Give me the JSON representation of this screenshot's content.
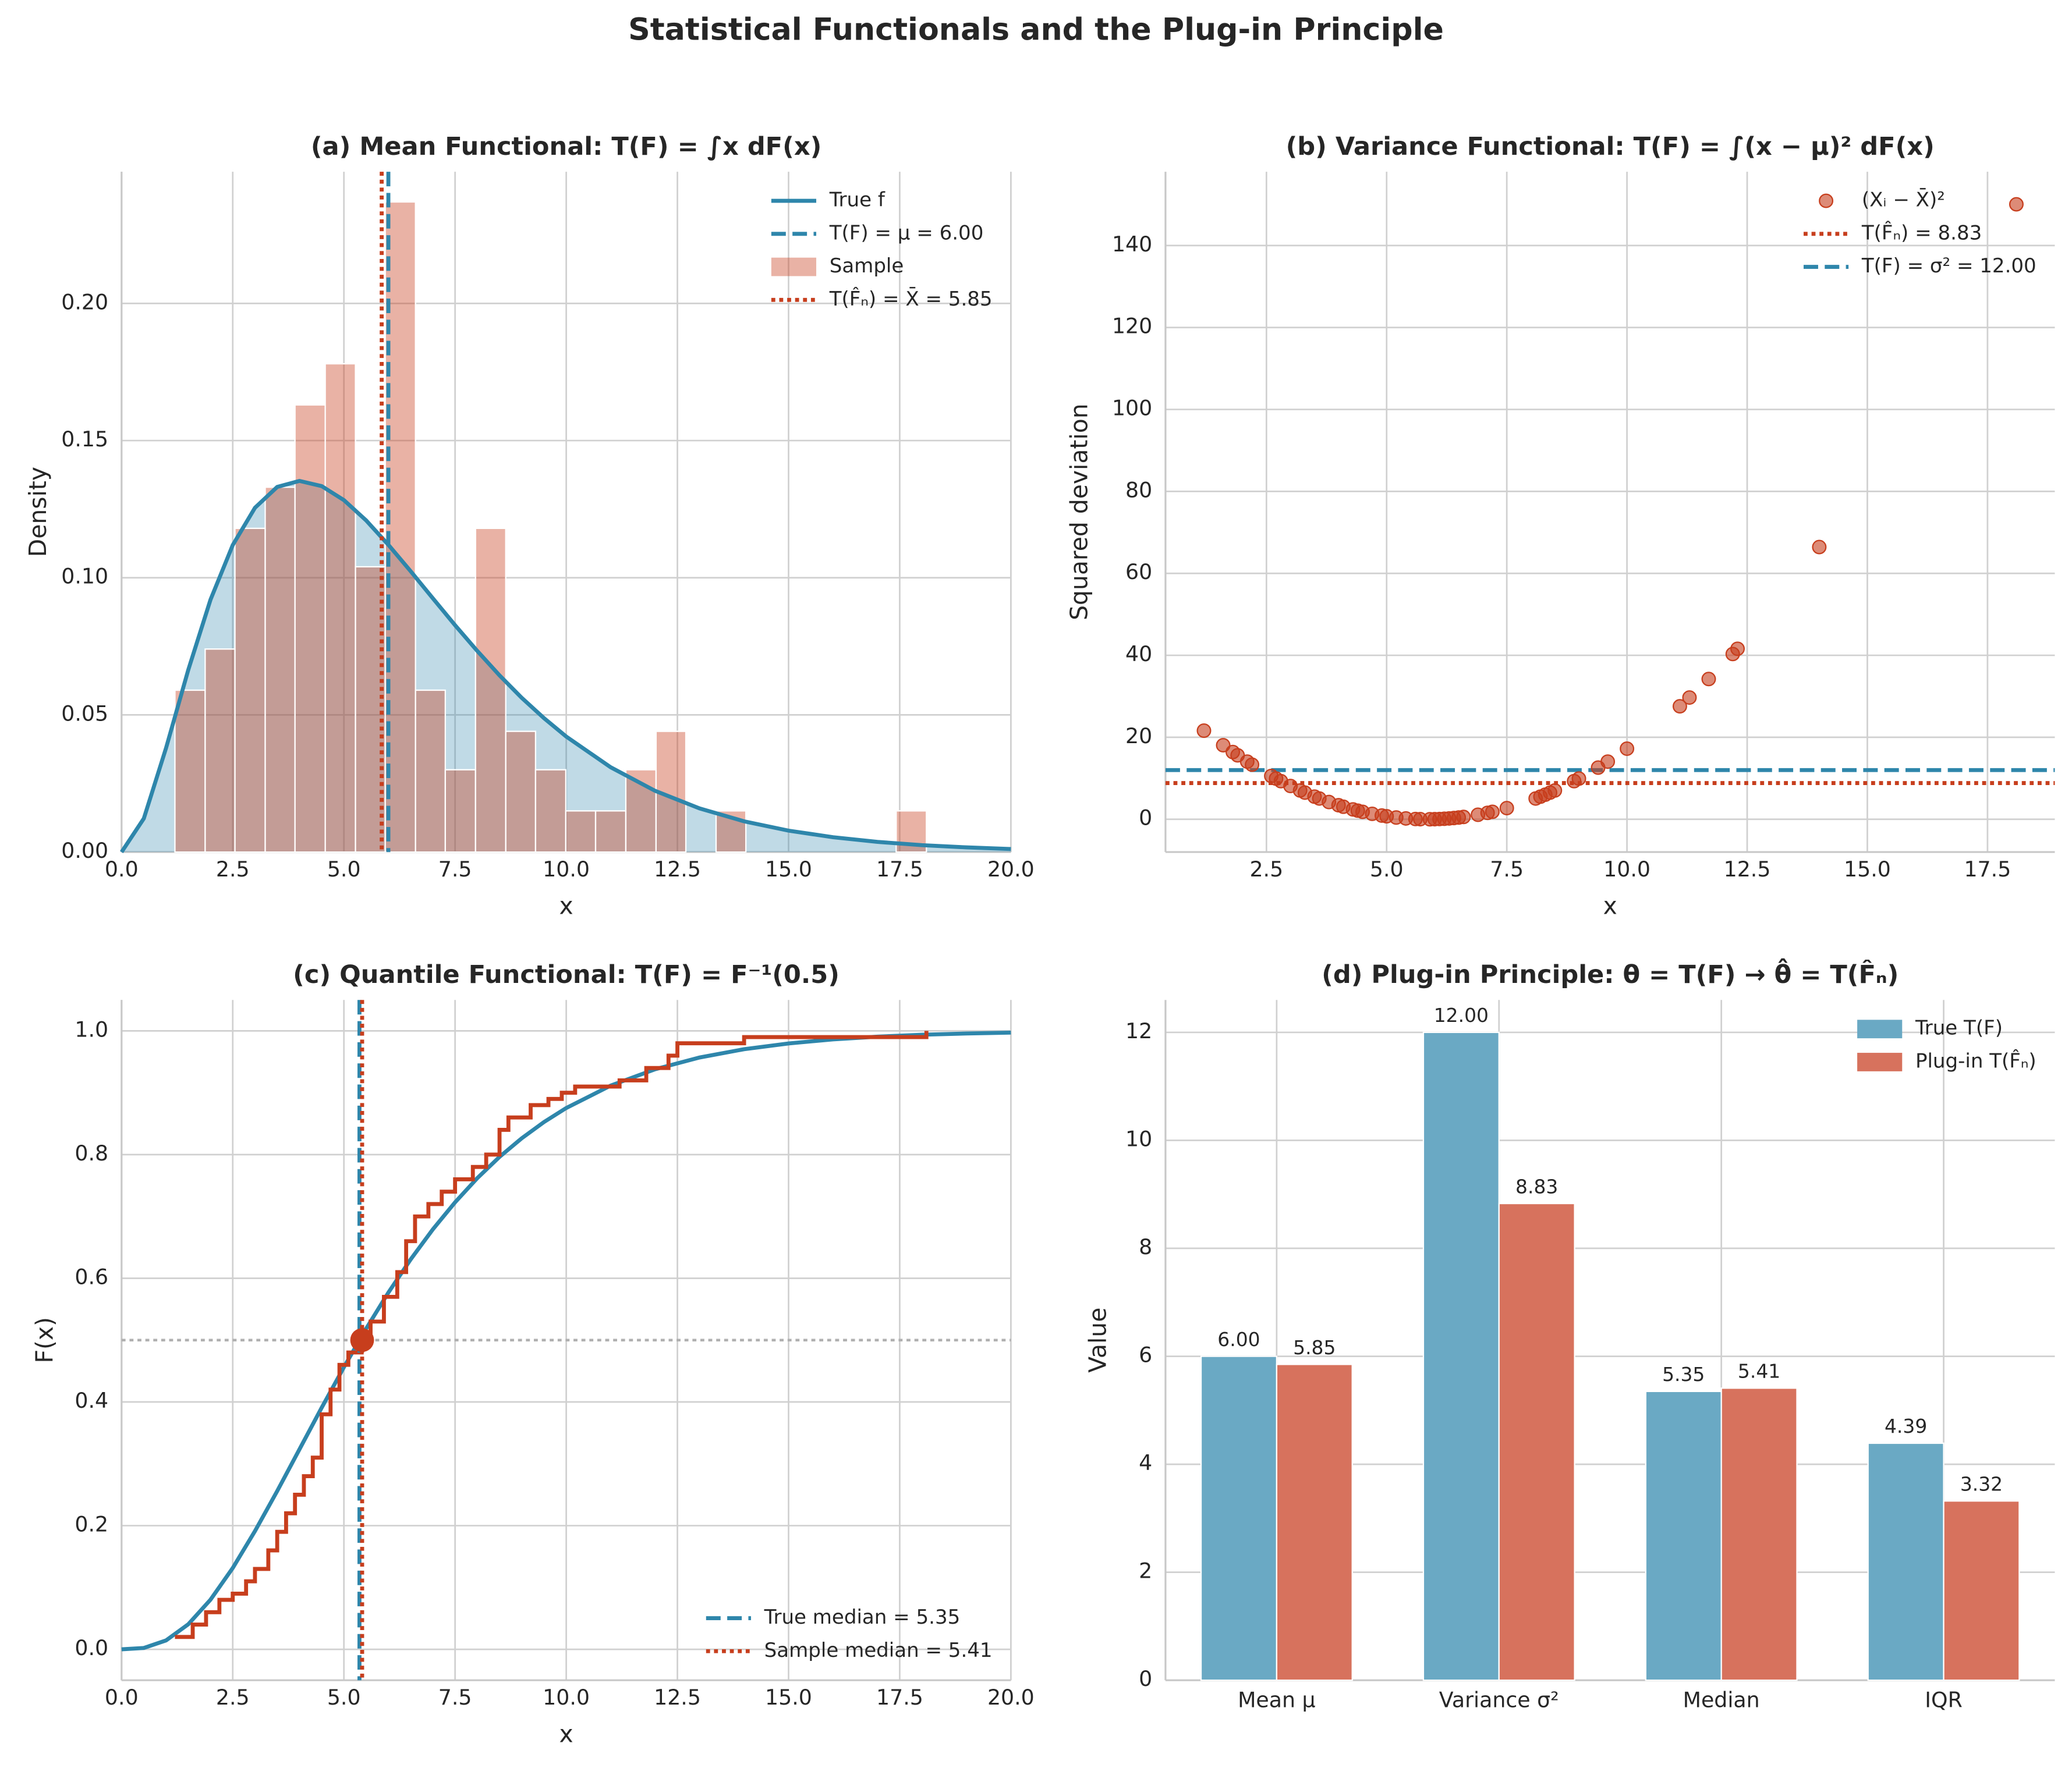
{
  "title": "Statistical Functionals and the Plug-in Principle",
  "chart_data": [
    {
      "type": "histogram",
      "title": "(a) Mean Functional: T(F) = ∫x dF(x)",
      "xlabel": "x",
      "ylabel": "Density",
      "name": "Sample",
      "color": "#c73e1d",
      "bins": [
        1.2,
        1.88,
        2.55,
        3.23,
        3.9,
        4.58,
        5.26,
        5.93,
        6.61,
        7.28,
        7.96,
        8.64,
        9.31,
        9.99,
        10.66,
        11.34,
        12.02,
        12.69,
        13.37,
        14.04,
        14.72,
        15.4,
        16.07,
        16.75,
        17.42,
        18.1
      ],
      "values": [
        0.059,
        0.074,
        0.118,
        0.133,
        0.163,
        0.178,
        0.104,
        0.237,
        0.059,
        0.03,
        0.118,
        0.044,
        0.03,
        0.015,
        0.015,
        0.03,
        0.044,
        0,
        0.015,
        0,
        0,
        0,
        0,
        0,
        0.015
      ],
      "curve": {
        "name": "True f",
        "color": "#2e86ab",
        "x": [
          0,
          0.5,
          1,
          1.5,
          2,
          2.5,
          3,
          3.5,
          4,
          4.5,
          5,
          5.5,
          6,
          6.5,
          7,
          7.5,
          8,
          8.5,
          9,
          9.5,
          10,
          11,
          12,
          13,
          14,
          15,
          16,
          17,
          18,
          19,
          20
        ],
        "values": [
          0,
          0.0122,
          0.0379,
          0.0664,
          0.092,
          0.1119,
          0.1255,
          0.1331,
          0.1353,
          0.1334,
          0.1283,
          0.1209,
          0.112,
          0.1024,
          0.0925,
          0.0827,
          0.0733,
          0.0644,
          0.0562,
          0.0488,
          0.0421,
          0.0309,
          0.0223,
          0.0159,
          0.0112,
          0.0078,
          0.0054,
          0.0037,
          0.0025,
          0.0017,
          0.0011
        ]
      },
      "vlines": [
        {
          "name": "T(F) = μ = 6.00",
          "value": 6.0,
          "color": "#2e86ab",
          "style": "dashed"
        },
        {
          "name": "T(F̂ₙ) = X̄ = 5.85",
          "value": 5.85,
          "color": "#c73e1d",
          "style": "dotted"
        }
      ],
      "xlim": [
        0,
        20
      ],
      "ylim": [
        0,
        0.248
      ],
      "xticks": [
        {
          "value": 0,
          "label": "0.0"
        },
        2.5,
        {
          "value": 5,
          "label": "5.0"
        },
        7.5,
        {
          "value": 10,
          "label": "10.0"
        },
        12.5,
        {
          "value": 15,
          "label": "15.0"
        },
        17.5,
        {
          "value": 20,
          "label": "20.0"
        }
      ],
      "yticks": [
        {
          "value": 0,
          "label": "0.00"
        },
        0.05,
        {
          "value": 0.1,
          "label": "0.10"
        },
        0.15,
        {
          "value": 0.2,
          "label": "0.20"
        }
      ],
      "grid": true,
      "legend": "upper right"
    },
    {
      "type": "scatter",
      "title": "(b) Variance Functional: T(F) = ∫(x − μ)² dF(x)",
      "xlabel": "x",
      "ylabel": "Squared deviation",
      "series": [
        {
          "name": "(Xᵢ − X̄)²",
          "color": "#c73e1d",
          "x": [
            1.2,
            1.6,
            1.8,
            1.9,
            2.1,
            2.2,
            2.6,
            2.7,
            2.8,
            3.0,
            3.2,
            3.3,
            3.5,
            3.6,
            3.8,
            4.0,
            4.1,
            4.3,
            4.4,
            4.5,
            4.7,
            4.9,
            5.0,
            5.2,
            5.4,
            5.6,
            5.7,
            5.9,
            6.0,
            6.1,
            6.2,
            6.3,
            6.4,
            6.5,
            6.6,
            6.9,
            7.1,
            7.2,
            7.5,
            8.1,
            8.2,
            8.3,
            8.4,
            8.5,
            8.9,
            9.0,
            9.4,
            9.6,
            10.0,
            11.1,
            11.3,
            11.7,
            12.2,
            12.3,
            14.0,
            18.1
          ],
          "values": [
            21.62,
            18.06,
            16.4,
            15.6,
            14.06,
            13.32,
            10.56,
            9.92,
            9.3,
            8.12,
            7.02,
            6.5,
            5.52,
            5.06,
            4.2,
            3.42,
            3.06,
            2.4,
            2.1,
            1.82,
            1.32,
            0.9,
            0.72,
            0.42,
            0.2,
            0.06,
            0.02,
            0.0,
            0.02,
            0.06,
            0.12,
            0.2,
            0.3,
            0.42,
            0.56,
            1.1,
            1.56,
            1.82,
            2.72,
            5.06,
            5.52,
            6.0,
            6.5,
            7.02,
            9.3,
            9.92,
            12.6,
            14.06,
            17.22,
            27.56,
            29.7,
            34.22,
            40.32,
            41.6,
            66.42,
            150.06
          ]
        }
      ],
      "hlines": [
        {
          "name": "T(F̂ₙ) = 8.83",
          "value": 8.83,
          "color": "#c73e1d",
          "style": "dotted"
        },
        {
          "name": "T(F) = σ² = 12.00",
          "value": 12.0,
          "color": "#2e86ab",
          "style": "dashed"
        }
      ],
      "xlim": [
        0.4,
        18.9
      ],
      "ylim": [
        -8,
        158
      ],
      "xticks": [
        2.5,
        {
          "value": 5,
          "label": "5.0"
        },
        7.5,
        {
          "value": 10,
          "label": "10.0"
        },
        12.5,
        {
          "value": 15,
          "label": "15.0"
        },
        17.5
      ],
      "yticks": [
        0,
        20,
        40,
        60,
        80,
        100,
        120,
        140
      ],
      "grid": true,
      "legend": "upper right"
    },
    {
      "type": "line",
      "title": "(c) Quantile Functional: T(F) = F⁻¹(0.5)",
      "xlabel": "x",
      "ylabel": "F(x)",
      "series": [
        {
          "color": "#2e86ab",
          "x": [
            0,
            0.5,
            1,
            1.5,
            2,
            2.5,
            3,
            3.5,
            4,
            4.5,
            5,
            5.5,
            6,
            6.5,
            7,
            7.5,
            8,
            8.5,
            9,
            9.5,
            10,
            11,
            12,
            13,
            14,
            15,
            16,
            17,
            18,
            19,
            20
          ],
          "values": [
            0,
            0.0022,
            0.0144,
            0.0405,
            0.0803,
            0.1315,
            0.1912,
            0.2559,
            0.3233,
            0.3907,
            0.4562,
            0.5185,
            0.5768,
            0.6304,
            0.6791,
            0.7228,
            0.7619,
            0.7963,
            0.8264,
            0.8526,
            0.8753,
            0.9116,
            0.938,
            0.957,
            0.9704,
            0.9797,
            0.9863,
            0.9907,
            0.9938,
            0.9958,
            0.9972
          ]
        },
        {
          "color": "#c73e1d",
          "step": "post",
          "x": [
            1.2,
            1.6,
            1.9,
            2.2,
            2.5,
            2.8,
            3.0,
            3.3,
            3.5,
            3.7,
            3.9,
            4.1,
            4.3,
            4.5,
            4.7,
            4.9,
            5.1,
            5.4,
            5.6,
            5.9,
            6.2,
            6.4,
            6.6,
            6.9,
            7.2,
            7.5,
            7.9,
            8.2,
            8.5,
            8.7,
            9.2,
            9.6,
            9.9,
            10.2,
            11.2,
            11.8,
            12.3,
            12.5,
            14.0,
            18.1
          ],
          "values": [
            0.02,
            0.04,
            0.06,
            0.08,
            0.09,
            0.11,
            0.13,
            0.16,
            0.19,
            0.22,
            0.25,
            0.28,
            0.31,
            0.38,
            0.42,
            0.46,
            0.48,
            0.5,
            0.53,
            0.57,
            0.61,
            0.66,
            0.7,
            0.72,
            0.74,
            0.76,
            0.78,
            0.8,
            0.84,
            0.86,
            0.88,
            0.89,
            0.9,
            0.91,
            0.92,
            0.94,
            0.96,
            0.98,
            0.99,
            1.0
          ]
        }
      ],
      "vlines": [
        {
          "name": "True median = 5.35",
          "value": 5.35,
          "color": "#2e86ab",
          "style": "dashed"
        },
        {
          "name": "Sample median = 5.41",
          "value": 5.41,
          "color": "#c73e1d",
          "style": "dotted"
        }
      ],
      "hlines": [
        {
          "value": 0.5,
          "color": "#b0b0b0",
          "style": "dotted"
        }
      ],
      "points": [
        {
          "x": 5.41,
          "y": 0.5,
          "color": "#c73e1d"
        }
      ],
      "xlim": [
        0,
        20
      ],
      "ylim": [
        -0.05,
        1.05
      ],
      "xticks": [
        {
          "value": 0,
          "label": "0.0"
        },
        2.5,
        {
          "value": 5,
          "label": "5.0"
        },
        7.5,
        {
          "value": 10,
          "label": "10.0"
        },
        12.5,
        {
          "value": 15,
          "label": "15.0"
        },
        17.5,
        {
          "value": 20,
          "label": "20.0"
        }
      ],
      "yticks": [
        {
          "value": 0,
          "label": "0.0"
        },
        0.2,
        0.4,
        0.6,
        0.8,
        {
          "value": 1,
          "label": "1.0"
        }
      ],
      "grid": true,
      "legend": "lower right"
    },
    {
      "type": "bar",
      "title": "(d) Plug-in Principle: θ = T(F) → θ̂ = T(F̂ₙ)",
      "ylabel": "Value",
      "categories": [
        "Mean μ",
        "Variance σ²",
        "Median",
        "IQR"
      ],
      "series": [
        {
          "name": "True T(F)",
          "color": "#6aa9c4",
          "values": [
            6.0,
            12.0,
            5.35,
            4.39
          ],
          "value_labels": [
            "6.00",
            "12.00",
            "5.35",
            "4.39"
          ]
        },
        {
          "name": "Plug-in T(F̂ₙ)",
          "color": "#d7725d",
          "values": [
            5.85,
            8.83,
            5.41,
            3.32
          ],
          "value_labels": [
            "5.85",
            "8.83",
            "5.41",
            "3.32"
          ]
        }
      ],
      "ylim": [
        0,
        12.6
      ],
      "yticks": [
        0,
        2,
        4,
        6,
        8,
        10,
        12
      ],
      "grid": true,
      "legend": "upper right"
    }
  ]
}
